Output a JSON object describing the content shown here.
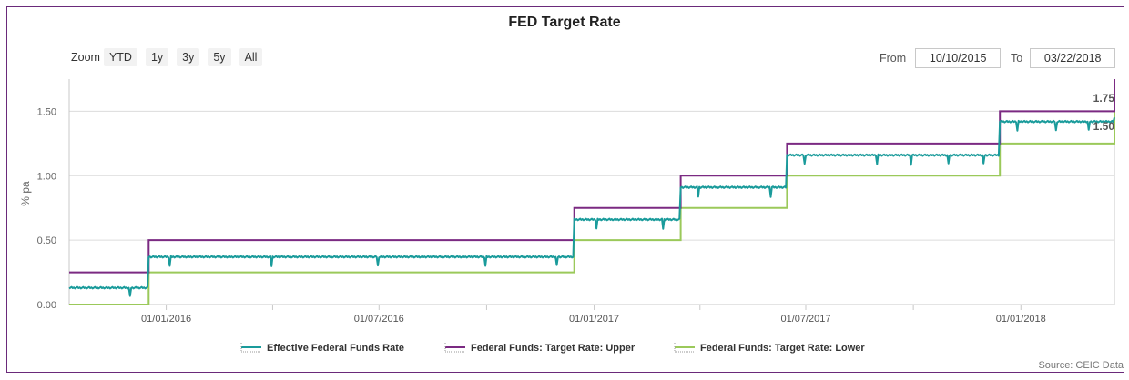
{
  "chart_data": {
    "type": "line",
    "title": "FED Target Rate",
    "ylabel": "% pa",
    "xlabel": "",
    "x_range": [
      "2015-10-10",
      "2018-03-22"
    ],
    "ylim": [
      0,
      1.75
    ],
    "y_ticks": [
      0.0,
      0.5,
      1.0,
      1.5
    ],
    "y_tick_labels": [
      "0.00",
      "0.50",
      "1.00",
      "1.50"
    ],
    "x_ticks": [
      "2016-01-01",
      "2016-07-01",
      "2017-01-01",
      "2017-07-01",
      "2018-01-01"
    ],
    "x_tick_labels": [
      "01/01/2016",
      "01/07/2016",
      "01/01/2017",
      "01/07/2017",
      "01/01/2018"
    ],
    "end_labels": [
      "1.75",
      "1.50"
    ],
    "legend_position": "bottom",
    "grid": true,
    "series": [
      {
        "name": "Effective Federal Funds Rate",
        "color": "#1a9b9b",
        "steps": [
          {
            "from": "2015-10-10",
            "value": 0.13
          },
          {
            "from": "2015-12-17",
            "value": 0.37
          },
          {
            "from": "2016-12-15",
            "value": 0.66
          },
          {
            "from": "2017-03-16",
            "value": 0.91
          },
          {
            "from": "2017-06-15",
            "value": 1.16
          },
          {
            "from": "2017-12-14",
            "value": 1.42
          },
          {
            "from": "2018-03-22",
            "value": 1.45
          }
        ],
        "dips": [
          "2015-12-01",
          "2016-01-04",
          "2016-03-31",
          "2016-06-30",
          "2016-09-30",
          "2016-11-30",
          "2017-01-03",
          "2017-03-01",
          "2017-03-31",
          "2017-06-01",
          "2017-06-30",
          "2017-08-31",
          "2017-09-29",
          "2017-10-31",
          "2017-11-30",
          "2017-12-29",
          "2018-01-31",
          "2018-02-28"
        ]
      },
      {
        "name": "Federal Funds: Target Rate: Upper",
        "color": "#7b2a82",
        "steps": [
          {
            "from": "2015-10-10",
            "value": 0.25
          },
          {
            "from": "2015-12-17",
            "value": 0.5
          },
          {
            "from": "2016-12-15",
            "value": 0.75
          },
          {
            "from": "2017-03-16",
            "value": 1.0
          },
          {
            "from": "2017-06-15",
            "value": 1.25
          },
          {
            "from": "2017-12-14",
            "value": 1.5
          },
          {
            "from": "2018-03-22",
            "value": 1.75
          }
        ]
      },
      {
        "name": "Federal Funds: Target Rate: Lower",
        "color": "#9bc95a",
        "steps": [
          {
            "from": "2015-10-10",
            "value": 0.0
          },
          {
            "from": "2015-12-17",
            "value": 0.25
          },
          {
            "from": "2016-12-15",
            "value": 0.5
          },
          {
            "from": "2017-03-16",
            "value": 0.75
          },
          {
            "from": "2017-06-15",
            "value": 1.0
          },
          {
            "from": "2017-12-14",
            "value": 1.25
          },
          {
            "from": "2018-03-22",
            "value": 1.5
          }
        ]
      }
    ]
  },
  "controls": {
    "zoom_label": "Zoom",
    "zoom_buttons": [
      "YTD",
      "1y",
      "3y",
      "5y",
      "All"
    ],
    "from_label": "From",
    "from_value": "10/10/2015",
    "to_label": "To",
    "to_value": "03/22/2018"
  },
  "source": "Source: CEIC Data"
}
